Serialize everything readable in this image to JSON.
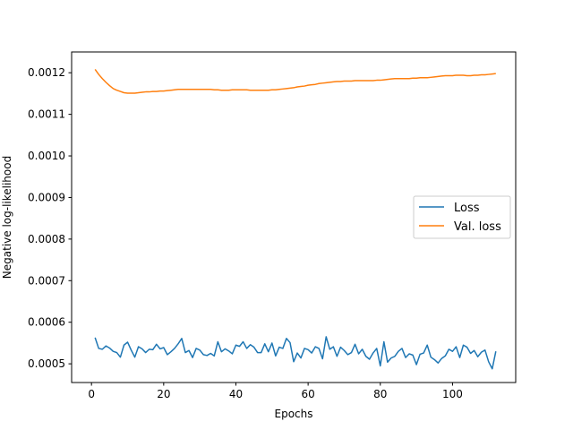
{
  "chart_data": {
    "type": "line",
    "xlabel": "Epochs",
    "ylabel": "Negative log-likelihood",
    "xlim": [
      -5.5,
      117.5
    ],
    "ylim": [
      0.000455,
      0.00125
    ],
    "x_ticks": [
      0,
      20,
      40,
      60,
      80,
      100
    ],
    "x_tick_labels": [
      "0",
      "20",
      "40",
      "60",
      "80",
      "100"
    ],
    "y_ticks": [
      0.0005,
      0.0006,
      0.0007,
      0.0008,
      0.0009,
      0.001,
      0.0011,
      0.0012
    ],
    "y_tick_labels": [
      "0.0005",
      "0.0006",
      "0.0007",
      "0.0008",
      "0.0009",
      "0.0010",
      "0.0011",
      "0.0012"
    ],
    "grid": false,
    "legend": {
      "position": "center-right",
      "entries": [
        "Loss",
        "Val. loss"
      ]
    },
    "series": [
      {
        "name": "Loss",
        "color": "#1f77b4",
        "x_start": 1,
        "x_step": 1,
        "values": [
          0.000563,
          0.000537,
          0.000535,
          0.000543,
          0.000538,
          0.00053,
          0.000527,
          0.000516,
          0.000545,
          0.000552,
          0.000533,
          0.000516,
          0.000541,
          0.000536,
          0.000527,
          0.000535,
          0.000534,
          0.000547,
          0.000536,
          0.000539,
          0.000522,
          0.000529,
          0.000537,
          0.000548,
          0.000561,
          0.000527,
          0.000532,
          0.000515,
          0.000537,
          0.000533,
          0.000522,
          0.00052,
          0.000525,
          0.000519,
          0.000553,
          0.000529,
          0.000536,
          0.000531,
          0.000524,
          0.000545,
          0.000542,
          0.000553,
          0.000537,
          0.000546,
          0.00054,
          0.000527,
          0.000527,
          0.000548,
          0.000529,
          0.00055,
          0.000519,
          0.00054,
          0.000537,
          0.000561,
          0.000551,
          0.000505,
          0.000526,
          0.000514,
          0.000537,
          0.000534,
          0.000526,
          0.000541,
          0.000537,
          0.000512,
          0.000565,
          0.000535,
          0.000541,
          0.000518,
          0.00054,
          0.000532,
          0.000522,
          0.000527,
          0.000547,
          0.000524,
          0.000535,
          0.000518,
          0.000511,
          0.000526,
          0.000537,
          0.000495,
          0.000553,
          0.000504,
          0.000514,
          0.000518,
          0.00053,
          0.000537,
          0.000515,
          0.000524,
          0.000521,
          0.000498,
          0.000523,
          0.000526,
          0.000545,
          0.000516,
          0.00051,
          0.000502,
          0.000513,
          0.000519,
          0.000535,
          0.00053,
          0.000541,
          0.000515,
          0.000545,
          0.00054,
          0.000525,
          0.000532,
          0.000517,
          0.000528,
          0.000533,
          0.000505,
          0.000488,
          0.00053
        ]
      },
      {
        "name": "Val. loss",
        "color": "#ff7f0e",
        "x_start": 1,
        "x_step": 1,
        "values": [
          0.001208,
          0.001196,
          0.001186,
          0.001177,
          0.001169,
          0.001162,
          0.001158,
          0.001155,
          0.001152,
          0.001151,
          0.001151,
          0.001151,
          0.001152,
          0.001153,
          0.001154,
          0.001154,
          0.001155,
          0.001155,
          0.001156,
          0.001156,
          0.001157,
          0.001158,
          0.001159,
          0.00116,
          0.00116,
          0.00116,
          0.00116,
          0.00116,
          0.00116,
          0.00116,
          0.00116,
          0.00116,
          0.00116,
          0.001159,
          0.001159,
          0.001158,
          0.001158,
          0.001158,
          0.001159,
          0.001159,
          0.001159,
          0.001159,
          0.001159,
          0.001158,
          0.001158,
          0.001158,
          0.001158,
          0.001158,
          0.001158,
          0.001159,
          0.001159,
          0.00116,
          0.001161,
          0.001162,
          0.001163,
          0.001164,
          0.001166,
          0.001167,
          0.001168,
          0.00117,
          0.001171,
          0.001172,
          0.001174,
          0.001175,
          0.001176,
          0.001177,
          0.001178,
          0.001179,
          0.001179,
          0.00118,
          0.00118,
          0.00118,
          0.001181,
          0.001181,
          0.001181,
          0.001181,
          0.001181,
          0.001181,
          0.001182,
          0.001182,
          0.001183,
          0.001184,
          0.001185,
          0.001186,
          0.001186,
          0.001186,
          0.001186,
          0.001186,
          0.001187,
          0.001187,
          0.001188,
          0.001188,
          0.001188,
          0.001189,
          0.00119,
          0.001191,
          0.001192,
          0.001193,
          0.001193,
          0.001193,
          0.001194,
          0.001194,
          0.001194,
          0.001193,
          0.001193,
          0.001194,
          0.001194,
          0.001195,
          0.001195,
          0.001196,
          0.001197,
          0.001198
        ]
      }
    ]
  }
}
